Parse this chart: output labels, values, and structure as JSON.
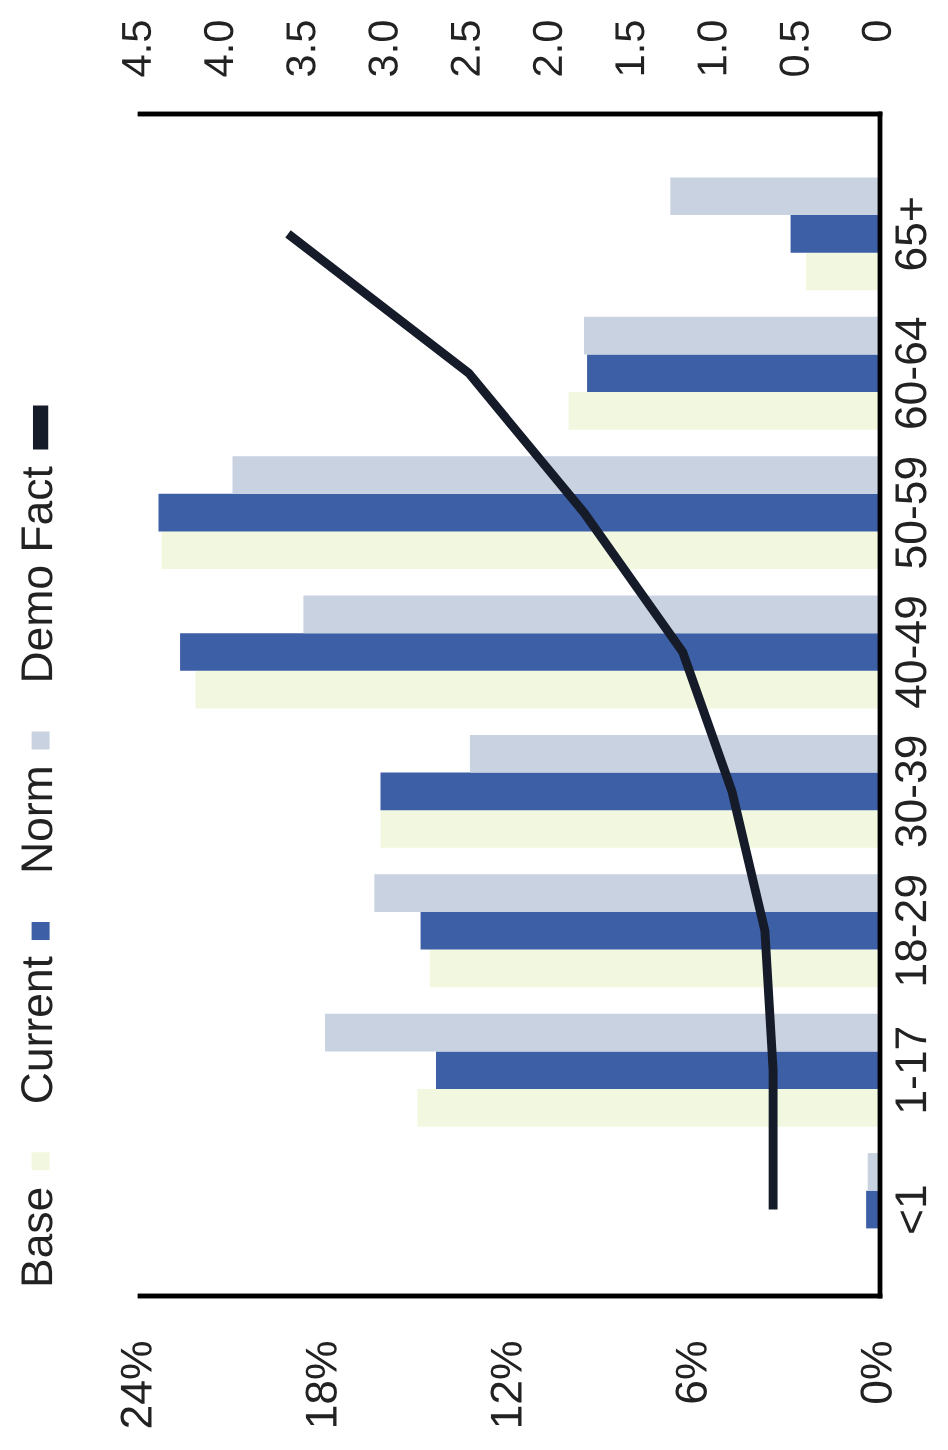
{
  "chart_data": {
    "type": "bar",
    "orientation": "horizontal",
    "categories": [
      "65+",
      "60-64",
      "50-59",
      "40-49",
      "30-39",
      "18-29",
      "1-17",
      "<1"
    ],
    "series": [
      {
        "name": "Base",
        "color": "#f2f8df",
        "values": [
          2.4,
          10.1,
          23.3,
          22.2,
          16.2,
          14.6,
          15.0,
          null
        ]
      },
      {
        "name": "Current",
        "color": "#3c5fa5",
        "values": [
          2.9,
          9.5,
          23.4,
          22.7,
          16.2,
          14.9,
          14.4,
          0.45
        ]
      },
      {
        "name": "Norm",
        "color": "#c9d2e1",
        "values": [
          6.8,
          9.6,
          21.0,
          18.7,
          13.3,
          16.4,
          18.0,
          0.4
        ]
      },
      {
        "name": "Demo Fact",
        "type": "line",
        "axis": "x2",
        "color": "#161b2a",
        "values": [
          3.6,
          2.5,
          1.8,
          1.2,
          0.9,
          0.7,
          0.65,
          0.65
        ]
      }
    ],
    "xlim": [
      24,
      0
    ],
    "xticks": [
      {
        "value": 24,
        "label": "24%"
      },
      {
        "value": 18,
        "label": "18%"
      },
      {
        "value": 12,
        "label": "12%"
      },
      {
        "value": 6,
        "label": "6%"
      },
      {
        "value": 0,
        "label": "0%"
      }
    ],
    "x2lim": [
      4.5,
      0
    ],
    "x2ticks": [
      4.5,
      {
        "value": 4,
        "label": "4.0"
      },
      3.5,
      {
        "value": 3,
        "label": "3.0"
      },
      2.5,
      {
        "value": 2,
        "label": "2.0"
      },
      1.5,
      {
        "value": 1,
        "label": "1.0"
      },
      0.5,
      0
    ],
    "legend": "left",
    "grid": false
  }
}
